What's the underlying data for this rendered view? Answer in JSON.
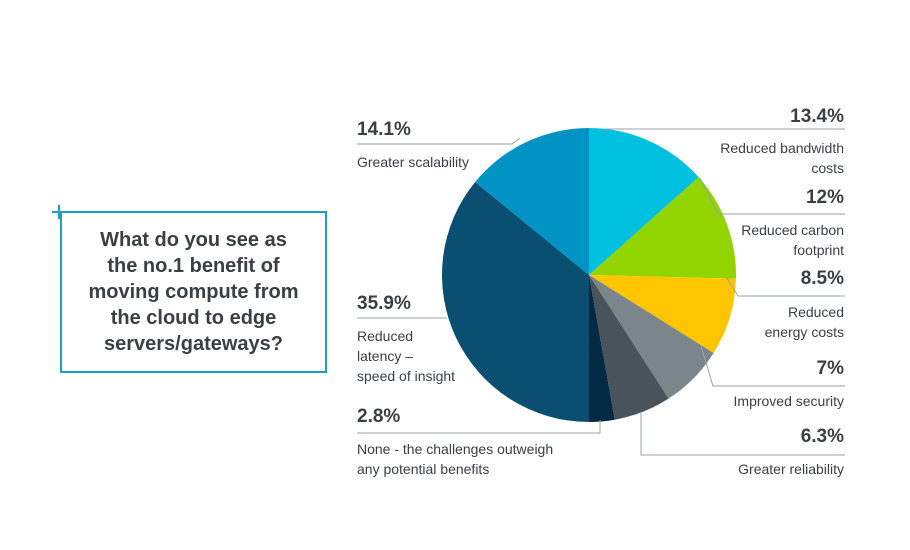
{
  "question": {
    "lines": [
      "What do you see as",
      "the no.1 benefit of",
      "moving compute from",
      "the cloud to edge",
      "servers/gateways?"
    ]
  },
  "chart_data": {
    "type": "pie",
    "title": "What do you see as the no.1 benefit of moving compute from the cloud to edge servers/gateways?",
    "slices": [
      {
        "label": "Reduced bandwidth costs",
        "value": 13.4,
        "display": "13.4%",
        "color": "#00c0e0",
        "label_lines": [
          "Reduced bandwidth",
          "costs"
        ]
      },
      {
        "label": "Reduced carbon footprint",
        "value": 12,
        "display": "12%",
        "color": "#92d400",
        "label_lines": [
          "Reduced carbon",
          "footprint"
        ]
      },
      {
        "label": "Reduced energy costs",
        "value": 8.5,
        "display": "8.5%",
        "color": "#ffc600",
        "label_lines": [
          "Reduced",
          "energy costs"
        ]
      },
      {
        "label": "Improved security",
        "value": 7,
        "display": "7%",
        "color": "#7b868c",
        "label_lines": [
          "Improved security"
        ]
      },
      {
        "label": "Greater reliability",
        "value": 6.3,
        "display": "6.3%",
        "color": "#48535c",
        "label_lines": [
          "Greater reliability"
        ]
      },
      {
        "label": "None - the challenges outweigh any potential benefits",
        "value": 2.8,
        "display": "2.8%",
        "color": "#022a45",
        "label_lines": [
          "None - the challenges outweigh",
          "any potential benefits"
        ]
      },
      {
        "label": "Reduced latency – speed of insight",
        "value": 35.9,
        "display": "35.9%",
        "color": "#0a4f72",
        "label_lines": [
          "Reduced",
          "latency –",
          "speed of insight"
        ]
      },
      {
        "label": "Greater scalability",
        "value": 14.1,
        "display": "14.1%",
        "color": "#0093c4",
        "label_lines": [
          "Greater scalability"
        ]
      }
    ]
  }
}
